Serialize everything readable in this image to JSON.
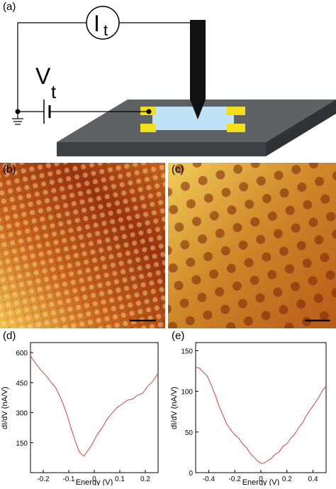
{
  "panels": {
    "a": {
      "label": "(a)",
      "current_symbol": "I",
      "current_subscript": "t",
      "voltage_symbol": "V",
      "voltage_subscript": "t"
    },
    "b": {
      "label": "(b)"
    },
    "c": {
      "label": "(c)"
    },
    "d": {
      "label": "(d)"
    },
    "e": {
      "label": "(e)"
    }
  },
  "colors": {
    "substrate_top": "#5f6264",
    "substrate_side": "#3f4244",
    "sample": "#bfe3f5",
    "contact": "#f2df19",
    "tip": "#111111",
    "curve": "#d0443e",
    "stm_dark": "#7a1f08",
    "stm_mid": "#c8641c",
    "stm_light": "#f1c04e"
  },
  "chart_data": [
    {
      "type": "line",
      "panel": "(d)",
      "xlabel": "Energy (V)",
      "ylabel": "dI/dV (nA/V)",
      "xlim": [
        -0.25,
        0.25
      ],
      "ylim": [
        0,
        650
      ],
      "xticks": [
        -0.2,
        -0.1,
        0,
        0.1,
        0.2
      ],
      "xtick_labels": [
        "-0.2",
        "-0.1",
        "0",
        "0.1",
        "0.2"
      ],
      "yticks": [
        150,
        300,
        450,
        600
      ],
      "ytick_labels": [
        "150",
        "300",
        "450",
        "600"
      ],
      "x": [
        -0.25,
        -0.23,
        -0.21,
        -0.19,
        -0.17,
        -0.15,
        -0.13,
        -0.11,
        -0.09,
        -0.07,
        -0.06,
        -0.05,
        -0.04,
        -0.03,
        -0.01,
        0.01,
        0.03,
        0.05,
        0.07,
        0.09,
        0.11,
        0.13,
        0.15,
        0.17,
        0.19,
        0.21,
        0.23,
        0.25
      ],
      "y": [
        585,
        545,
        515,
        485,
        455,
        420,
        370,
        300,
        220,
        140,
        110,
        90,
        85,
        100,
        140,
        185,
        225,
        265,
        300,
        325,
        345,
        360,
        370,
        385,
        400,
        430,
        460,
        495
      ]
    },
    {
      "type": "line",
      "panel": "(e)",
      "xlabel": "Energy (V)",
      "ylabel": "dI/dV (nA/V)",
      "xlim": [
        -0.5,
        0.5
      ],
      "ylim": [
        0,
        160
      ],
      "xticks": [
        -0.4,
        -0.2,
        0,
        0.2,
        0.4
      ],
      "xtick_labels": [
        "-0.4",
        "-0.2",
        "0",
        "0.2",
        "0.4"
      ],
      "yticks": [
        0,
        50,
        100,
        150
      ],
      "ytick_labels": [
        "0",
        "50",
        "100",
        "150"
      ],
      "x": [
        -0.5,
        -0.47,
        -0.44,
        -0.41,
        -0.38,
        -0.35,
        -0.32,
        -0.29,
        -0.26,
        -0.23,
        -0.2,
        -0.17,
        -0.14,
        -0.11,
        -0.08,
        -0.05,
        -0.02,
        0.0,
        0.02,
        0.05,
        0.08,
        0.11,
        0.14,
        0.17,
        0.2,
        0.23,
        0.26,
        0.29,
        0.32,
        0.35,
        0.38,
        0.41,
        0.44,
        0.47,
        0.5
      ],
      "y": [
        130,
        128,
        124,
        118,
        108,
        95,
        82,
        70,
        60,
        52,
        47,
        42,
        36,
        30,
        24,
        18,
        14,
        11,
        12,
        14,
        18,
        22,
        26,
        32,
        36,
        42,
        48,
        55,
        62,
        70,
        78,
        84,
        92,
        100,
        107
      ]
    }
  ]
}
